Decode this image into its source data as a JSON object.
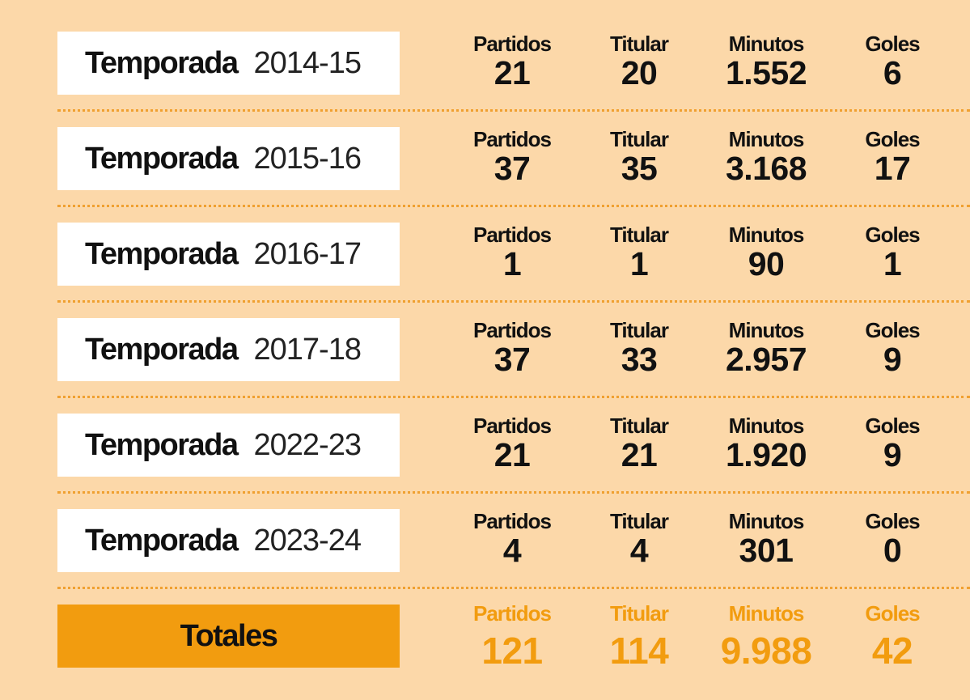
{
  "rows": [
    {
      "label": "Temporada",
      "season": "2014-15",
      "stats": [
        {
          "header": "Partidos",
          "value": "21"
        },
        {
          "header": "Titular",
          "value": "20"
        },
        {
          "header": "Minutos",
          "value": "1.552"
        },
        {
          "header": "Goles",
          "value": "6"
        }
      ]
    },
    {
      "label": "Temporada",
      "season": "2015-16",
      "stats": [
        {
          "header": "Partidos",
          "value": "37"
        },
        {
          "header": "Titular",
          "value": "35"
        },
        {
          "header": "Minutos",
          "value": "3.168"
        },
        {
          "header": "Goles",
          "value": "17"
        }
      ]
    },
    {
      "label": "Temporada",
      "season": "2016-17",
      "stats": [
        {
          "header": "Partidos",
          "value": "1"
        },
        {
          "header": "Titular",
          "value": "1"
        },
        {
          "header": "Minutos",
          "value": "90"
        },
        {
          "header": "Goles",
          "value": "1"
        }
      ]
    },
    {
      "label": "Temporada",
      "season": "2017-18",
      "stats": [
        {
          "header": "Partidos",
          "value": "37"
        },
        {
          "header": "Titular",
          "value": "33"
        },
        {
          "header": "Minutos",
          "value": "2.957"
        },
        {
          "header": "Goles",
          "value": "9"
        }
      ]
    },
    {
      "label": "Temporada",
      "season": "2022-23",
      "stats": [
        {
          "header": "Partidos",
          "value": "21"
        },
        {
          "header": "Titular",
          "value": "21"
        },
        {
          "header": "Minutos",
          "value": "1.920"
        },
        {
          "header": "Goles",
          "value": "9"
        }
      ]
    },
    {
      "label": "Temporada",
      "season": "2023-24",
      "stats": [
        {
          "header": "Partidos",
          "value": "4"
        },
        {
          "header": "Titular",
          "value": "4"
        },
        {
          "header": "Minutos",
          "value": "301"
        },
        {
          "header": "Goles",
          "value": "0"
        }
      ]
    }
  ],
  "totals": {
    "label": "Totales",
    "stats": [
      {
        "header": "Partidos",
        "value": "121"
      },
      {
        "header": "Titular",
        "value": "114"
      },
      {
        "header": "Minutos",
        "value": "9.988"
      },
      {
        "header": "Goles",
        "value": "42"
      }
    ]
  }
}
